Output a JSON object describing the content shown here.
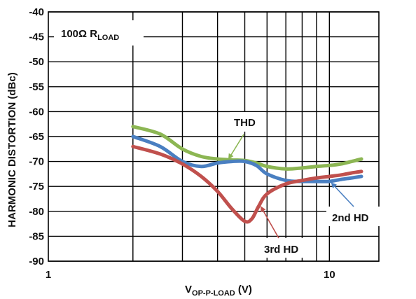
{
  "chart_data": {
    "type": "line",
    "x_scale": "log",
    "xlim": [
      1,
      15
    ],
    "ylim": [
      -90,
      -40
    ],
    "x_ticks": [
      "1",
      "10"
    ],
    "y_ticks": [
      "-40",
      "-45",
      "-50",
      "-55",
      "-60",
      "-65",
      "-70",
      "-75",
      "-80",
      "-85",
      "-90"
    ],
    "y_tick_values": [
      -40,
      -45,
      -50,
      -55,
      -60,
      -65,
      -70,
      -75,
      -80,
      -85,
      -90
    ],
    "x_tick_values": [
      1,
      10
    ],
    "ylabel": "HARMONIC DISTORTION (dBc)",
    "xlabel": {
      "main": "V",
      "sub": "OP-P-LOAD",
      "unit": " (V)"
    },
    "load_label": {
      "main": "100Ω R",
      "sub": "LOAD"
    },
    "grid": true,
    "series": [
      {
        "name": "THD",
        "color": "#8cb653",
        "x": [
          2,
          2.5,
          3,
          3.5,
          4,
          4.5,
          5,
          5.5,
          6,
          7,
          8,
          9,
          10,
          11,
          12,
          13
        ],
        "y": [
          -63,
          -64.5,
          -67.5,
          -69,
          -69.5,
          -69.7,
          -69.8,
          -70.3,
          -71,
          -71.5,
          -71.3,
          -71,
          -70.8,
          -70.5,
          -70,
          -69.5
        ]
      },
      {
        "name": "2nd HD",
        "color": "#4a7fc1",
        "x": [
          2,
          2.5,
          3,
          3.5,
          4,
          4.5,
          5,
          5.5,
          6,
          7,
          8,
          9,
          10,
          11,
          12,
          13
        ],
        "y": [
          -65,
          -67,
          -70,
          -71,
          -70.3,
          -70,
          -70,
          -70.8,
          -72.5,
          -73.8,
          -74,
          -74,
          -74,
          -73.6,
          -73.3,
          -73
        ]
      },
      {
        "name": "3rd HD",
        "color": "#c0504d",
        "x": [
          2,
          2.5,
          3,
          3.5,
          4,
          4.5,
          5,
          5.3,
          5.6,
          6,
          7,
          8,
          9,
          10,
          11,
          12,
          13
        ],
        "y": [
          -67,
          -68.5,
          -70.5,
          -73,
          -76,
          -79.5,
          -82,
          -81.5,
          -79,
          -76.5,
          -74.5,
          -73.8,
          -73.3,
          -73,
          -72.7,
          -72.3,
          -72
        ]
      }
    ]
  }
}
